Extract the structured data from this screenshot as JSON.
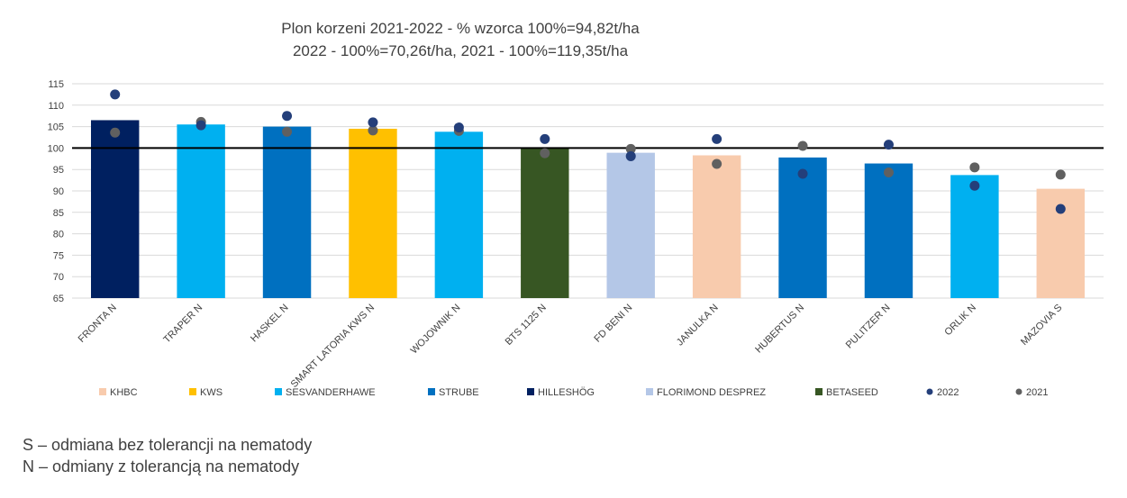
{
  "chart_data": {
    "type": "bar",
    "title_lines": [
      "Plon korzeni 2021-2022 - % wzorca 100%=94,82t/ha",
      "2022 - 100%=70,26t/ha, 2021 - 100%=119,35t/ha"
    ],
    "categories": [
      "FRONTA N",
      "TRAPER N",
      "HASKEL N",
      "SMART LATORIA KWS N",
      "WOJOWNIK N",
      "BTS 1125 N",
      "FD BENI N",
      "JANULKA N",
      "HUBERTUS N",
      "PULITZER N",
      "ORLIK N",
      "MAZOVIA S"
    ],
    "values": [
      106.5,
      105.5,
      105.0,
      104.5,
      103.8,
      100.0,
      98.9,
      98.3,
      97.8,
      96.4,
      93.7,
      90.5
    ],
    "bar_breeder": [
      "HILLESHÖG",
      "SESVANDERHAWE",
      "STRUBE",
      "KWS",
      "SESVANDERHAWE",
      "BETASEED",
      "FLORIMOND DESPREZ",
      "KHBC",
      "STRUBE",
      "STRUBE",
      "SESVANDERHAWE",
      "KHBC"
    ],
    "series": [
      {
        "name": "2022",
        "values": [
          112.5,
          105.3,
          107.5,
          106.0,
          104.8,
          102.1,
          98.1,
          102.1,
          94.0,
          100.8,
          91.2,
          85.8
        ],
        "color": "#243f7a"
      },
      {
        "name": "2021",
        "values": [
          103.6,
          106.1,
          103.8,
          104.1,
          104.0,
          98.8,
          99.8,
          96.3,
          100.5,
          94.3,
          95.5,
          93.8
        ],
        "color": "#606060"
      }
    ],
    "reference_line": 100,
    "ylim": [
      65,
      115
    ],
    "yticks": [
      65,
      70,
      75,
      80,
      85,
      90,
      95,
      100,
      105,
      110,
      115
    ],
    "grid": true,
    "legend_position": "bottom",
    "legend": [
      {
        "name": "KHBC",
        "color": "#f8cbad",
        "kind": "square"
      },
      {
        "name": "KWS",
        "color": "#ffc000",
        "kind": "square"
      },
      {
        "name": "SESVANDERHAWE",
        "color": "#00b0f0",
        "kind": "square"
      },
      {
        "name": "STRUBE",
        "color": "#0070c0",
        "kind": "square"
      },
      {
        "name": "HILLESHÖG",
        "color": "#002060",
        "kind": "square"
      },
      {
        "name": "FLORIMOND DESPREZ",
        "color": "#b4c7e7",
        "kind": "square"
      },
      {
        "name": "BETASEED",
        "color": "#375623",
        "kind": "square"
      },
      {
        "name": "2022",
        "color": "#243f7a",
        "kind": "dot"
      },
      {
        "name": "2021",
        "color": "#606060",
        "kind": "dot"
      }
    ]
  },
  "notes": [
    "S – odmiana bez tolerancji na nematody",
    "N – odmiany z tolerancją na nematody"
  ]
}
